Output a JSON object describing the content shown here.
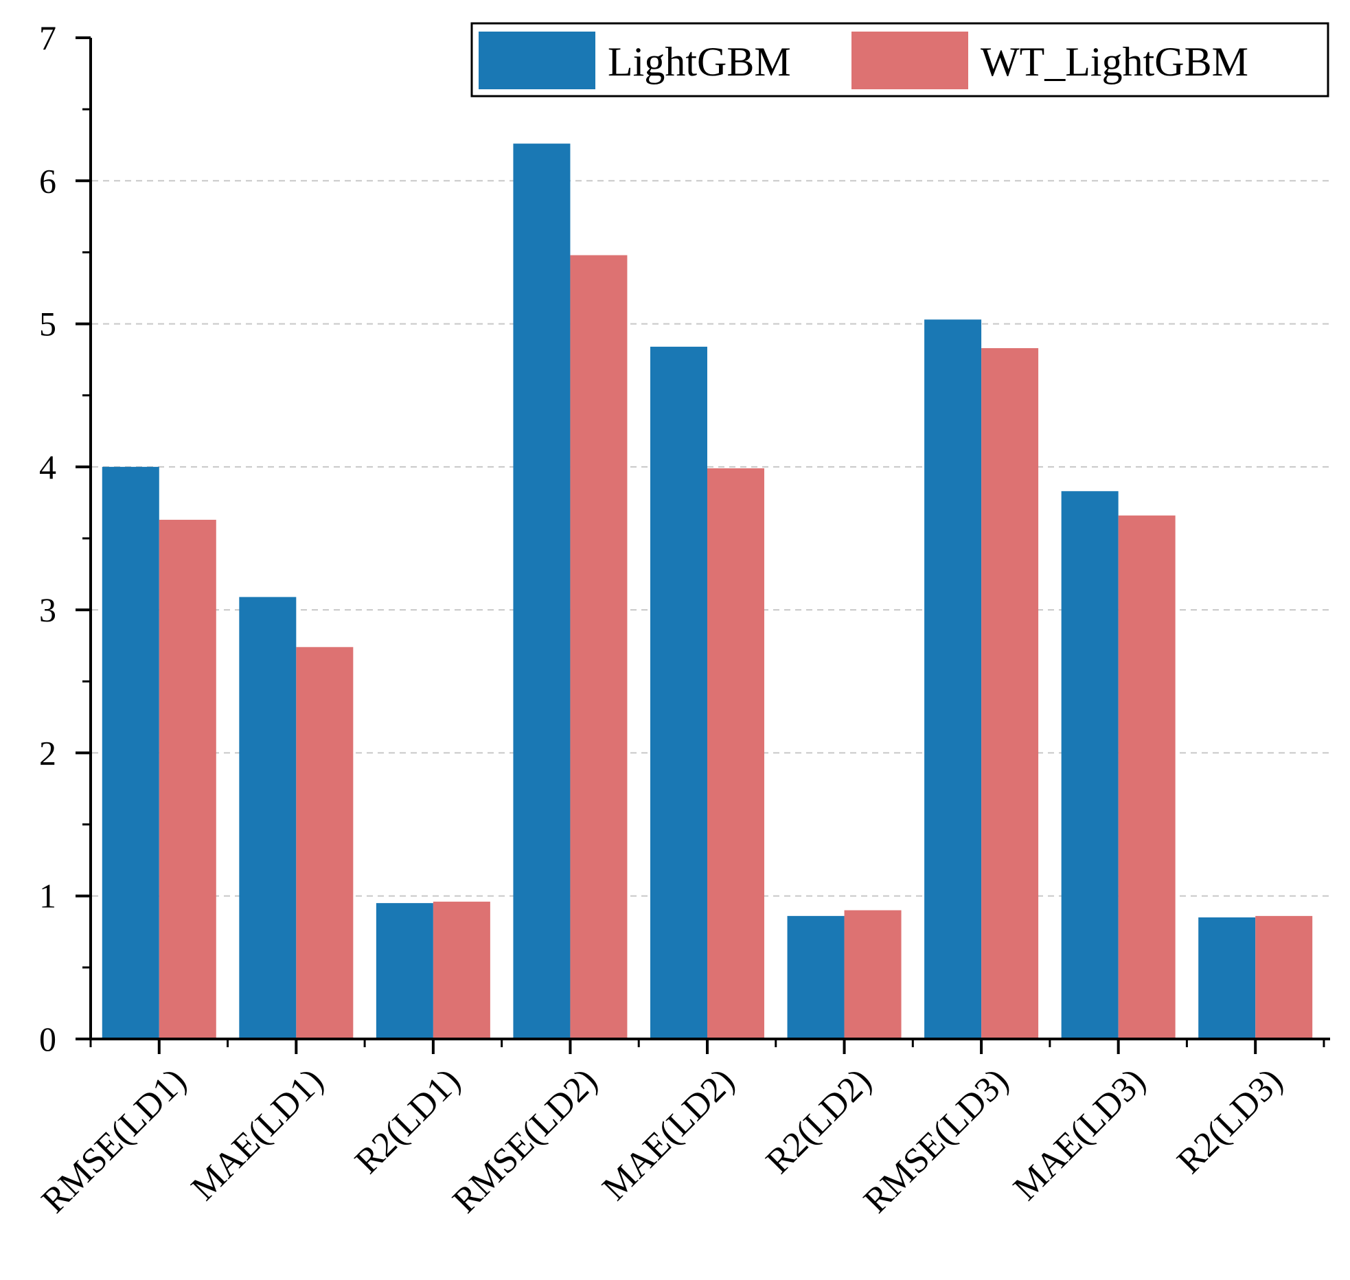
{
  "chart_data": {
    "type": "bar",
    "title": "",
    "xlabel": "",
    "ylabel": "",
    "categories": [
      "RMSE(LD1)",
      "MAE(LD1)",
      "R2(LD1)",
      "RMSE(LD2)",
      "MAE(LD2)",
      "R2(LD2)",
      "RMSE(LD3)",
      "MAE(LD3)",
      "R2(LD3)"
    ],
    "series": [
      {
        "name": "LightGBM",
        "color": "#1a78b4",
        "values": [
          4.0,
          3.09,
          0.95,
          6.26,
          4.84,
          0.86,
          5.03,
          3.83,
          0.85
        ]
      },
      {
        "name": "WT_LightGBM",
        "color": "#dd7272",
        "values": [
          3.63,
          2.74,
          0.96,
          5.48,
          3.99,
          0.9,
          4.83,
          3.66,
          0.86
        ]
      }
    ],
    "ylim": [
      0,
      7
    ],
    "yticks": [
      0,
      1,
      2,
      3,
      4,
      5,
      6,
      7
    ],
    "grid": true,
    "legend_position": "top-right"
  }
}
